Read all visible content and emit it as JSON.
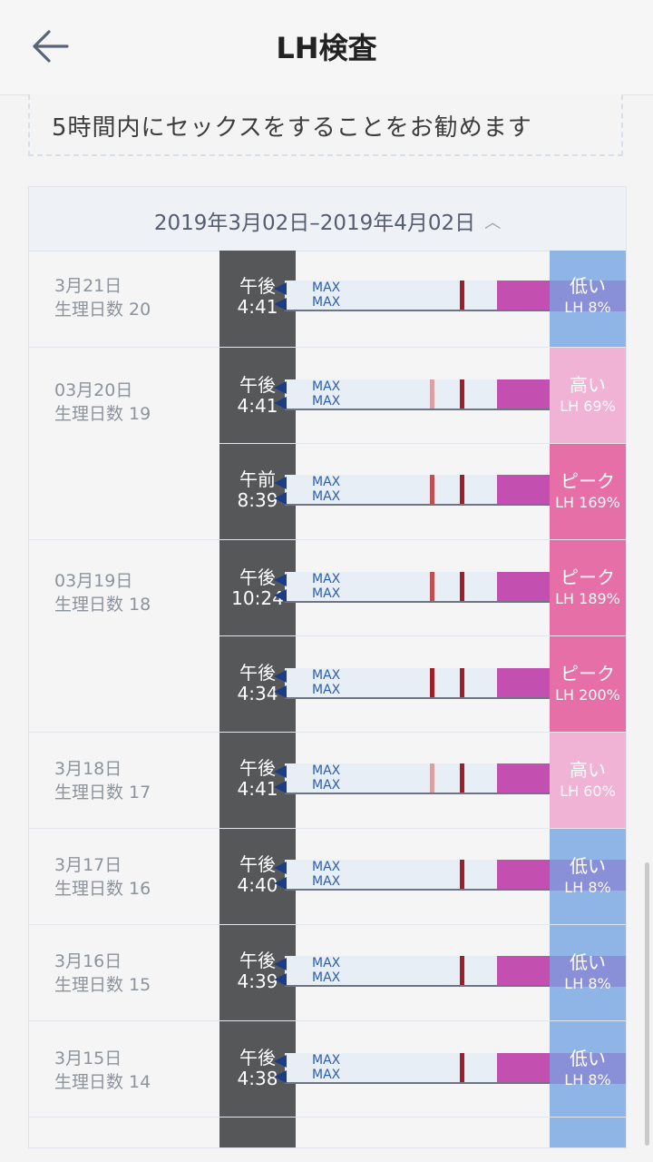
{
  "header": {
    "title": "LH検査"
  },
  "note": {
    "text": "5時間内にセックスをすることをお勧めます"
  },
  "range": {
    "label": "2019年3月02日–2019年4月02日"
  },
  "colors": {
    "low": "#8fb5e6",
    "high": "#f0b3d6",
    "peak": "#e56fa6",
    "handle": "#c34fb1",
    "line_dark": "#9d1f2a",
    "line_light": "#d9a1a4",
    "line_mid": "#c0504f"
  },
  "rows": [
    {
      "date": "3月21日",
      "cycle": "生理日数 20",
      "time_line1": "午後",
      "time_line2": "4:41",
      "max1": "MAX",
      "max2": "MAX",
      "level_text": "低い",
      "lh": "LH 8%"
    },
    {
      "date": "03月20日",
      "cycle": "生理日数 19",
      "time_line1": "午後",
      "time_line2": "4:41",
      "max1": "MAX",
      "max2": "MAX",
      "level_text": "高い",
      "lh": "LH 69%"
    },
    {
      "date": "",
      "cycle": "",
      "time_line1": "午前",
      "time_line2": "8:39",
      "max1": "MAX",
      "max2": "MAX",
      "level_text": "ピーク",
      "lh": "LH 169%"
    },
    {
      "date": "03月19日",
      "cycle": "生理日数 18",
      "time_line1": "午後",
      "time_line2": "10:24",
      "max1": "MAX",
      "max2": "MAX",
      "level_text": "ピーク",
      "lh": "LH 189%"
    },
    {
      "date": "",
      "cycle": "",
      "time_line1": "午後",
      "time_line2": "4:34",
      "max1": "MAX",
      "max2": "MAX",
      "level_text": "ピーク",
      "lh": "LH 200%"
    },
    {
      "date": "3月18日",
      "cycle": "生理日数 17",
      "time_line1": "午後",
      "time_line2": "4:41",
      "max1": "MAX",
      "max2": "MAX",
      "level_text": "高い",
      "lh": "LH 60%"
    },
    {
      "date": "3月17日",
      "cycle": "生理日数 16",
      "time_line1": "午後",
      "time_line2": "4:40",
      "max1": "MAX",
      "max2": "MAX",
      "level_text": "低い",
      "lh": "LH 8%"
    },
    {
      "date": "3月16日",
      "cycle": "生理日数 15",
      "time_line1": "午後",
      "time_line2": "4:39",
      "max1": "MAX",
      "max2": "MAX",
      "level_text": "低い",
      "lh": "LH 8%"
    },
    {
      "date": "3月15日",
      "cycle": "生理日数 14",
      "time_line1": "午後",
      "time_line2": "4:38",
      "max1": "MAX",
      "max2": "MAX",
      "level_text": "低い",
      "lh": "LH 8%"
    }
  ]
}
